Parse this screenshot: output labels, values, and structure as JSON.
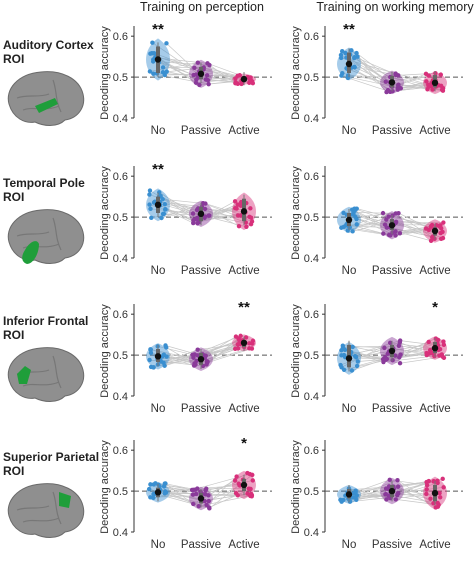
{
  "column_titles": [
    "Training on perception",
    "Training on working memory"
  ],
  "rois": [
    {
      "line1": "Auditory Cortex",
      "line2": "ROI",
      "color": "#1f9e3a"
    },
    {
      "line1": "Temporal Pole",
      "line2": "ROI",
      "color": "#1f9e3a"
    },
    {
      "line1": "Inferior Frontal",
      "line2": "ROI",
      "color": "#1f9e3a"
    },
    {
      "line1": "Superior Parietal",
      "line2": "ROI",
      "color": "#1f9e3a"
    }
  ],
  "colors": {
    "No": "#3a8fd0",
    "Passive": "#8a3a9a",
    "Active": "#d8307a",
    "brain": "#8f8f8f"
  },
  "chart_data": [
    {
      "type": "violin",
      "roi": "Auditory Cortex ROI",
      "training": "Training on perception",
      "ylabel": "Decoding accuracy",
      "ylim": [
        0.4,
        0.62
      ],
      "yticks": [
        0.4,
        0.5,
        0.6
      ],
      "chance": 0.5,
      "categories": [
        "No",
        "Passive",
        "Active"
      ],
      "medians": [
        0.543,
        0.508,
        0.495
      ],
      "q1": [
        0.51,
        0.495,
        0.49
      ],
      "q3": [
        0.575,
        0.525,
        0.502
      ],
      "spread": [
        0.045,
        0.03,
        0.012
      ],
      "significance": [
        "**",
        "",
        ""
      ]
    },
    {
      "type": "violin",
      "roi": "Auditory Cortex ROI",
      "training": "Training on working memory",
      "ylabel": "Decoding accuracy",
      "ylim": [
        0.4,
        0.62
      ],
      "yticks": [
        0.4,
        0.5,
        0.6
      ],
      "chance": 0.5,
      "categories": [
        "No",
        "Passive",
        "Active"
      ],
      "medians": [
        0.532,
        0.487,
        0.486
      ],
      "q1": [
        0.51,
        0.475,
        0.475
      ],
      "q3": [
        0.56,
        0.503,
        0.505
      ],
      "spread": [
        0.035,
        0.025,
        0.024
      ],
      "significance": [
        "**",
        "",
        ""
      ]
    },
    {
      "type": "violin",
      "roi": "Temporal Pole ROI",
      "training": "Training on perception",
      "ylabel": "Decoding accuracy",
      "ylim": [
        0.4,
        0.62
      ],
      "yticks": [
        0.4,
        0.5,
        0.6
      ],
      "chance": 0.5,
      "categories": [
        "No",
        "Passive",
        "Active"
      ],
      "medians": [
        0.53,
        0.508,
        0.514
      ],
      "q1": [
        0.51,
        0.49,
        0.49
      ],
      "q3": [
        0.55,
        0.525,
        0.545
      ],
      "spread": [
        0.035,
        0.028,
        0.04
      ],
      "significance": [
        "**",
        "",
        ""
      ]
    },
    {
      "type": "violin",
      "roi": "Temporal Pole ROI",
      "training": "Training on working memory",
      "ylabel": "Decoding accuracy",
      "ylim": [
        0.4,
        0.62
      ],
      "yticks": [
        0.4,
        0.5,
        0.6
      ],
      "chance": 0.5,
      "categories": [
        "No",
        "Passive",
        "Active"
      ],
      "medians": [
        0.493,
        0.48,
        0.466
      ],
      "q1": [
        0.478,
        0.468,
        0.455
      ],
      "q3": [
        0.51,
        0.495,
        0.475
      ],
      "spread": [
        0.028,
        0.03,
        0.025
      ],
      "significance": [
        "",
        "",
        ""
      ]
    },
    {
      "type": "violin",
      "roi": "Inferior Frontal ROI",
      "training": "Training on perception",
      "ylabel": "Decoding accuracy",
      "ylim": [
        0.4,
        0.62
      ],
      "yticks": [
        0.4,
        0.5,
        0.6
      ],
      "chance": 0.5,
      "categories": [
        "No",
        "Passive",
        "Active"
      ],
      "medians": [
        0.497,
        0.49,
        0.53
      ],
      "q1": [
        0.483,
        0.476,
        0.52
      ],
      "q3": [
        0.515,
        0.505,
        0.535
      ],
      "spread": [
        0.028,
        0.025,
        0.018
      ],
      "significance": [
        "",
        "",
        "**"
      ]
    },
    {
      "type": "violin",
      "roi": "Inferior Frontal ROI",
      "training": "Training on working memory",
      "ylabel": "Decoding accuracy",
      "ylim": [
        0.4,
        0.62
      ],
      "yticks": [
        0.4,
        0.5,
        0.6
      ],
      "chance": 0.5,
      "categories": [
        "No",
        "Passive",
        "Active"
      ],
      "medians": [
        0.492,
        0.51,
        0.517
      ],
      "q1": [
        0.47,
        0.495,
        0.505
      ],
      "q3": [
        0.525,
        0.525,
        0.532
      ],
      "spread": [
        0.035,
        0.03,
        0.025
      ],
      "significance": [
        "",
        "",
        "*"
      ]
    },
    {
      "type": "violin",
      "roi": "Superior Parietal ROI",
      "training": "Training on perception",
      "ylabel": "Decoding accuracy",
      "ylim": [
        0.4,
        0.62
      ],
      "yticks": [
        0.4,
        0.5,
        0.6
      ],
      "chance": 0.5,
      "categories": [
        "No",
        "Passive",
        "Active"
      ],
      "medians": [
        0.497,
        0.482,
        0.515
      ],
      "q1": [
        0.485,
        0.47,
        0.5
      ],
      "q3": [
        0.508,
        0.495,
        0.53
      ],
      "spread": [
        0.022,
        0.025,
        0.03
      ],
      "significance": [
        "",
        "",
        "*"
      ]
    },
    {
      "type": "violin",
      "roi": "Superior Parietal ROI",
      "training": "Training on working memory",
      "ylabel": "Decoding accuracy",
      "ylim": [
        0.4,
        0.62
      ],
      "yticks": [
        0.4,
        0.5,
        0.6
      ],
      "chance": 0.5,
      "categories": [
        "No",
        "Passive",
        "Active"
      ],
      "medians": [
        0.492,
        0.5,
        0.495
      ],
      "q1": [
        0.482,
        0.485,
        0.475
      ],
      "q3": [
        0.505,
        0.515,
        0.515
      ],
      "spread": [
        0.02,
        0.028,
        0.035
      ],
      "significance": [
        "",
        "",
        ""
      ]
    }
  ]
}
